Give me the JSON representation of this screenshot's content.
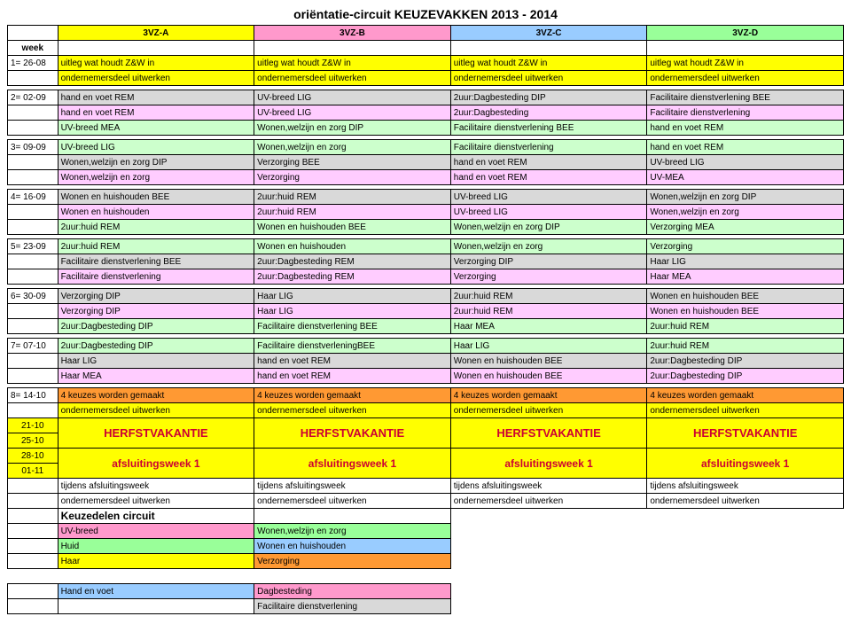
{
  "title": "oriëntatie-circuit KEUZEVAKKEN 2013 - 2014",
  "cols": {
    "a": "3VZ-A",
    "b": "3VZ-B",
    "c": "3VZ-C",
    "d": "3VZ-D"
  },
  "week_label": "week",
  "w1": {
    "lbl": "1= 26-08",
    "r1": "uitleg wat houdt Z&W in",
    "r2": "ondernemersdeel uitwerken"
  },
  "w2": {
    "lbl": "2= 02-09",
    "r1": {
      "a": "hand en voet REM",
      "b": "UV-breed LIG",
      "c": "2uur:Dagbesteding DIP",
      "d": "Facilitaire dienstverlening BEE"
    },
    "r2": {
      "a": "hand en voet  REM",
      "b": "UV-breed  LIG",
      "c": "2uur:Dagbesteding",
      "d": "Facilitaire dienstverlening"
    },
    "r3": {
      "a": "UV-breed MEA",
      "b": "Wonen,welzijn en zorg DIP",
      "c": "Facilitaire dienstverlening BEE",
      "d": "hand en voet REM"
    }
  },
  "w3": {
    "lbl": "3= 09-09",
    "r1": {
      "a": "UV-breed  LIG",
      "b": "Wonen,welzijn en zorg",
      "c": "Facilitaire dienstverlening",
      "d": "hand en voet  REM"
    },
    "r2": {
      "a": "Wonen,welzijn en zorg DIP",
      "b": "Verzorging BEE",
      "c": "hand en voet REM",
      "d": "UV-breed LIG"
    },
    "r3": {
      "a": "Wonen,welzijn en zorg",
      "b": "Verzorging",
      "c": "hand en voet  REM",
      "d": "UV-MEA"
    }
  },
  "w4": {
    "lbl": "4= 16-09",
    "r1": {
      "a": "Wonen en huishouden BEE",
      "b": "2uur:huid REM",
      "c": "UV-breed  LIG",
      "d": "Wonen,welzijn en zorg DIP"
    },
    "r2": {
      "a": "Wonen en huishouden",
      "b": "2uur:huid  REM",
      "c": "UV-breed  LIG",
      "d": "Wonen,welzijn en zorg"
    },
    "r3": {
      "a": "2uur:huid REM",
      "b": "Wonen en huishouden  BEE",
      "c": "Wonen,welzijn en zorg DIP",
      "d": "Verzorging MEA"
    }
  },
  "w5": {
    "lbl": "5= 23-09",
    "r1": {
      "a": "2uur:huid REM",
      "b": "Wonen en huishouden",
      "c": "Wonen,welzijn en zorg",
      "d": "Verzorging"
    },
    "r2": {
      "a": "Facilitaire dienstverlening BEE",
      "b": "2uur:Dagbesteding REM",
      "c": "Verzorging DIP",
      "d": "Haar LIG"
    },
    "r3": {
      "a": "Facilitaire dienstverlening",
      "b": "2uur:Dagbesteding  REM",
      "c": "Verzorging",
      "d": "Haar  MEA"
    }
  },
  "w6": {
    "lbl": "6= 30-09",
    "r1": {
      "a": "Verzorging DIP",
      "b": "Haar LIG",
      "c": "2uur:huid REM",
      "d": "Wonen en huishouden BEE"
    },
    "r2": {
      "a": "Verzorging DIP",
      "b": "Haar  LIG",
      "c": "2uur:huid  REM",
      "d": "Wonen en huishouden BEE"
    },
    "r3": {
      "a": "2uur:Dagbesteding DIP",
      "b": "Facilitaire dienstverlening BEE",
      "c": "Haar MEA",
      "d": "2uur:huid REM"
    }
  },
  "w7": {
    "lbl": "7= 07-10",
    "r1": {
      "a": "2uur:Dagbesteding DIP",
      "b": "Facilitaire dienstverleningBEE",
      "c": "Haar  LIG",
      "d": "2uur:huid  REM"
    },
    "r2": {
      "a": "Haar LIG",
      "b": "hand en voet REM",
      "c": "Wonen en huishouden BEE",
      "d": "2uur:Dagbesteding DIP"
    },
    "r3": {
      "a": "Haar  MEA",
      "b": "hand en voet  REM",
      "c": "Wonen en huishouden BEE",
      "d": "2uur:Dagbesteding DIP"
    }
  },
  "w8": {
    "lbl": "8= 14-10",
    "r1": "4 keuzes worden gemaakt",
    "r2": "ondernemersdeel uitwerken"
  },
  "d21": "21-10",
  "d25": "25-10",
  "d28": "28-10",
  "d01": "01-11",
  "herfst": "HERFSTVAKANTIE",
  "afsluit": "afsluitingsweek 1",
  "tijdens": "tijdens afsluitingsweek",
  "ond": "ondernemersdeel uitwerken",
  "kc": {
    "title": "Keuzedelen circuit",
    "a1": "UV-breed",
    "b1": "Wonen,welzijn en zorg",
    "a2": "Huid",
    "b2": "Wonen en huishouden",
    "a3": "Haar",
    "b3": "Verzorging",
    "a4": "Hand en voet",
    "b4": "Dagbesteding",
    "b5": "Facilitaire dienstverlening"
  }
}
